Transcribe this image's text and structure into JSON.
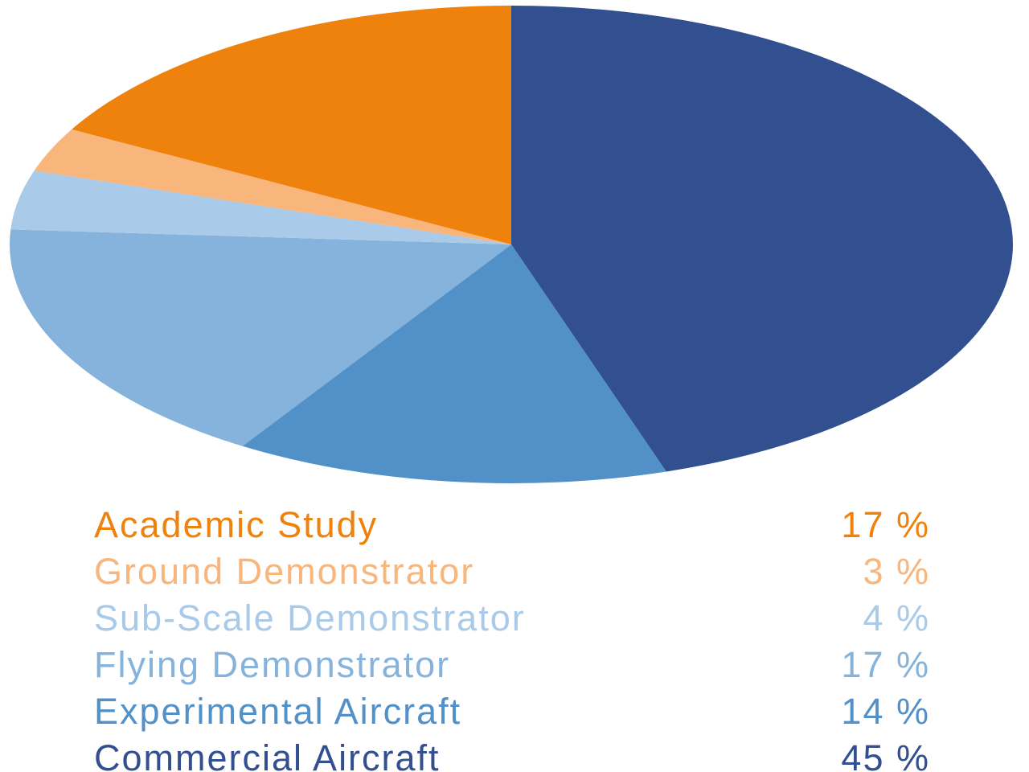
{
  "chart_data": {
    "type": "pie",
    "slices": [
      {
        "label": "Commercial Aircraft",
        "value": 45,
        "value_label": "45 %",
        "color": "#324f8f"
      },
      {
        "label": "Experimental Aircraft",
        "value": 14,
        "value_label": "14 %",
        "color": "#5290c8"
      },
      {
        "label": "Flying Demonstrator",
        "value": 17,
        "value_label": "17 %",
        "color": "#86b3dc"
      },
      {
        "label": "Sub-Scale Demonstrator",
        "value": 4,
        "value_label": "4 %",
        "color": "#a9cae8"
      },
      {
        "label": "Ground Demonstrator",
        "value": 3,
        "value_label": "3 %",
        "color": "#f8b57c"
      },
      {
        "label": "Academic Study",
        "value": 17,
        "value_label": "17 %",
        "color": "#ee820c"
      }
    ],
    "start_angle": "12 o'clock",
    "direction": "clockwise",
    "legend_position": "bottom",
    "legend_order": [
      "Academic Study",
      "Ground Demonstrator",
      "Sub-Scale Demonstrator",
      "Flying Demonstrator",
      "Experimental Aircraft",
      "Commercial Aircraft"
    ]
  }
}
